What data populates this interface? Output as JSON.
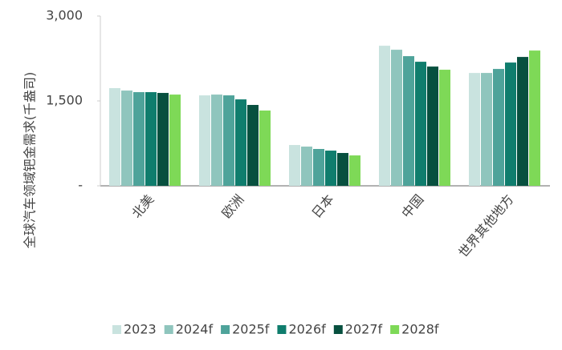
{
  "chart_data": {
    "type": "bar",
    "y_label": "全球汽车领域钯金需求(千盎司)",
    "categories": [
      "北美",
      "欧洲",
      "日本",
      "中国",
      "世界其他地方"
    ],
    "series": [
      {
        "name": "2023",
        "color": "#c9e3df",
        "values": [
          1726,
          1598,
          721,
          2475,
          1994
        ]
      },
      {
        "name": "2024f",
        "color": "#8fc5bd",
        "values": [
          1683,
          1612,
          693,
          2404,
          1994
        ]
      },
      {
        "name": "2025f",
        "color": "#4ea39a",
        "values": [
          1655,
          1598,
          651,
          2291,
          2065
        ]
      },
      {
        "name": "2026f",
        "color": "#0f7d6d",
        "values": [
          1655,
          1527,
          622,
          2192,
          2178
        ]
      },
      {
        "name": "2027f",
        "color": "#07503f",
        "values": [
          1641,
          1429,
          580,
          2107,
          2277
        ]
      },
      {
        "name": "2028f",
        "color": "#7ed957",
        "values": [
          1612,
          1330,
          537,
          2051,
          2390
        ]
      }
    ],
    "ylim": [
      0,
      3000
    ],
    "yticks": [
      {
        "value": 0,
        "label": "-"
      },
      {
        "value": 1500,
        "label": "1,500"
      },
      {
        "value": 3000,
        "label": "3,000"
      }
    ]
  }
}
